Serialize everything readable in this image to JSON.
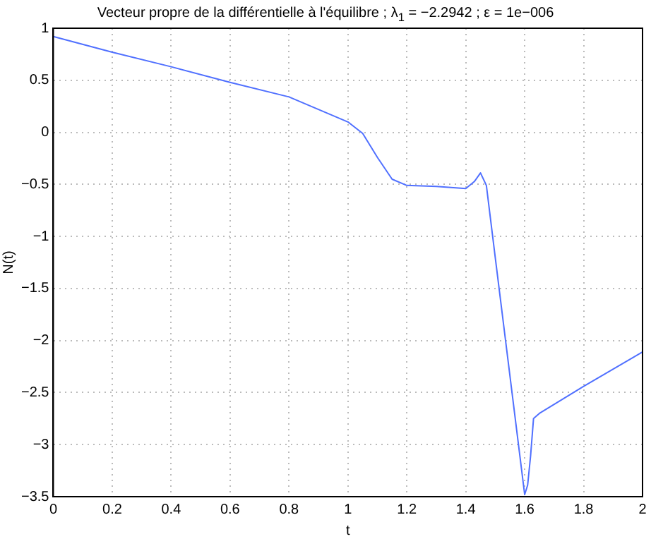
{
  "chart_data": {
    "type": "line",
    "title": "Vecteur propre de la différentielle à l'équilibre ; λ$_{1}$ = −2.2942 ; ε = 1e−006",
    "xlabel": "t",
    "ylabel": "N(t)",
    "x": [
      0,
      0.2,
      0.4,
      0.6,
      0.8,
      0.9,
      1.0,
      1.05,
      1.1,
      1.15,
      1.2,
      1.3,
      1.4,
      1.43,
      1.45,
      1.47,
      1.5,
      1.55,
      1.6,
      1.61,
      1.615,
      1.62,
      1.63,
      1.65,
      1.8,
      2.0
    ],
    "values": [
      0.92,
      0.77,
      0.63,
      0.48,
      0.34,
      0.22,
      0.1,
      -0.01,
      -0.24,
      -0.45,
      -0.51,
      -0.52,
      -0.54,
      -0.47,
      -0.39,
      -0.51,
      -1.2,
      -2.34,
      -3.48,
      -3.39,
      -3.25,
      -3.11,
      -2.75,
      -2.7,
      -2.44,
      -2.11
    ],
    "color": "#5070ff",
    "xlim": [
      0,
      2
    ],
    "ylim": [
      -3.5,
      1
    ],
    "xticks": [
      0,
      0.2,
      0.4,
      0.6,
      0.8,
      1,
      1.2,
      1.4,
      1.6,
      1.8,
      2
    ],
    "yticks": [
      -3.5,
      -3,
      -2.5,
      -2,
      -1.5,
      -1,
      -0.5,
      0,
      0.5,
      1
    ],
    "grid": true
  }
}
